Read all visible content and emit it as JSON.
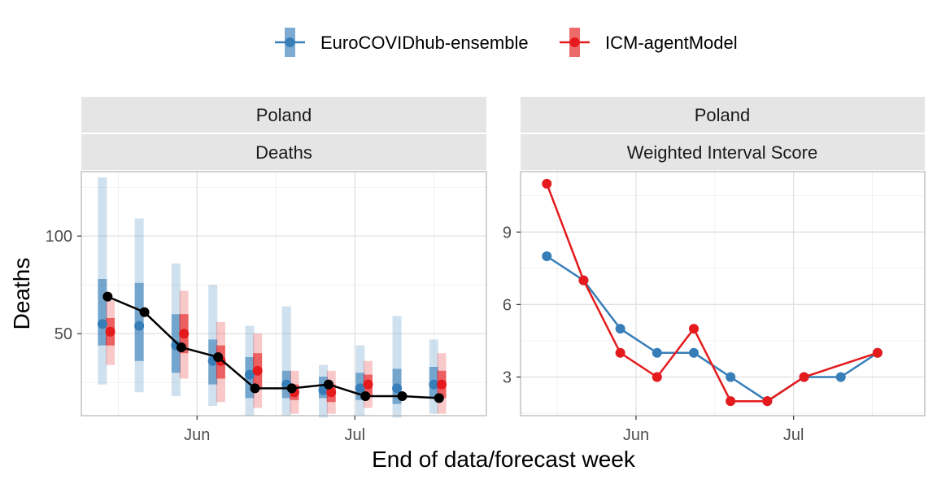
{
  "legend": [
    {
      "name": "EuroCOVIDhub-ensemble",
      "color": "#377EB8"
    },
    {
      "name": "ICM-agentModel",
      "color": "#E41A1C"
    }
  ],
  "x_axis_title": "End of data/forecast week",
  "chart_data": [
    {
      "type": "line",
      "strips": [
        "Poland",
        "Deaths"
      ],
      "ylabel": "Deaths",
      "xlim": [
        "2021-05-10",
        "2021-07-26"
      ],
      "ylim": [
        8,
        133
      ],
      "x_ticks": [
        {
          "date": "2021-06-01",
          "label": "Jun"
        },
        {
          "date": "2021-07-01",
          "label": "Jul"
        }
      ],
      "y_ticks": [
        {
          "value": 50,
          "label": "50"
        },
        {
          "value": 100,
          "label": "100"
        }
      ],
      "grid": true,
      "observed": {
        "color": "#000000",
        "x": [
          "2021-05-15",
          "2021-05-22",
          "2021-05-29",
          "2021-06-05",
          "2021-06-12",
          "2021-06-19",
          "2021-06-26",
          "2021-07-03",
          "2021-07-10",
          "2021-07-17"
        ],
        "y": [
          69,
          61,
          43,
          38,
          22,
          22,
          24,
          18,
          18,
          17
        ]
      },
      "series": [
        {
          "name": "EuroCOVIDhub-ensemble",
          "color": "#377EB8",
          "x": [
            "2021-05-14",
            "2021-05-21",
            "2021-05-28",
            "2021-06-04",
            "2021-06-11",
            "2021-06-18",
            "2021-06-25",
            "2021-07-02",
            "2021-07-09",
            "2021-07-16"
          ],
          "median": [
            55,
            54,
            44,
            36,
            29,
            24,
            21,
            22,
            22,
            24
          ],
          "inner": [
            [
              44,
              78
            ],
            [
              36,
              76
            ],
            [
              30,
              60
            ],
            [
              24,
              47
            ],
            [
              17,
              38
            ],
            [
              17,
              31
            ],
            [
              17,
              28
            ],
            [
              16,
              30
            ],
            [
              14,
              32
            ],
            [
              17,
              33
            ]
          ],
          "outer": [
            [
              24,
              130
            ],
            [
              20,
              109
            ],
            [
              18,
              86
            ],
            [
              13,
              75
            ],
            [
              8,
              54
            ],
            [
              8,
              64
            ],
            [
              7,
              34
            ],
            [
              8,
              44
            ],
            [
              7,
              59
            ],
            [
              9,
              47
            ]
          ]
        },
        {
          "name": "ICM-agentModel",
          "color": "#E41A1C",
          "x": [
            "2021-05-15.5",
            "2021-05-22.5",
            "2021-05-29.5",
            "2021-06-05.5",
            "2021-06-12.5",
            "2021-06-19.5",
            "2021-06-26.5",
            "2021-07-03.5",
            "2021-07-10.5",
            "2021-07-17.5"
          ],
          "median": [
            51,
            null,
            50,
            36,
            31,
            20,
            20,
            24,
            null,
            24
          ],
          "inner": [
            [
              44,
              58
            ],
            null,
            [
              40,
              60
            ],
            [
              27,
              44
            ],
            [
              22,
              40
            ],
            [
              16,
              24
            ],
            [
              15,
              24
            ],
            [
              18,
              29
            ],
            null,
            [
              17,
              31
            ]
          ],
          "outer": [
            [
              34,
              67
            ],
            null,
            [
              27,
              72
            ],
            [
              15,
              56
            ],
            [
              12,
              50
            ],
            [
              9,
              31
            ],
            [
              9,
              31
            ],
            [
              12,
              36
            ],
            null,
            [
              9,
              40
            ]
          ]
        }
      ]
    },
    {
      "type": "line",
      "strips": [
        "Poland",
        "Weighted Interval Score"
      ],
      "xlim": [
        "2021-05-10",
        "2021-07-26"
      ],
      "ylim": [
        1.4,
        11.5
      ],
      "x_ticks": [
        {
          "date": "2021-06-01",
          "label": "Jun"
        },
        {
          "date": "2021-07-01",
          "label": "Jul"
        }
      ],
      "y_ticks": [
        {
          "value": 3,
          "label": "3"
        },
        {
          "value": 6,
          "label": "6"
        },
        {
          "value": 9,
          "label": "9"
        }
      ],
      "grid": true,
      "series": [
        {
          "name": "EuroCOVIDhub-ensemble",
          "color": "#377EB8",
          "x": [
            "2021-05-15",
            "2021-05-22",
            "2021-05-29",
            "2021-06-05",
            "2021-06-12",
            "2021-06-19",
            "2021-06-26",
            "2021-07-03",
            "2021-07-10",
            "2021-07-17"
          ],
          "values": [
            8,
            7,
            5,
            4,
            4,
            3,
            2,
            3,
            3,
            4
          ]
        },
        {
          "name": "ICM-agentModel",
          "color": "#E41A1C",
          "x": [
            "2021-05-15",
            "2021-05-22",
            "2021-05-29",
            "2021-06-05",
            "2021-06-12",
            "2021-06-19",
            "2021-06-26",
            "2021-07-03",
            "2021-07-17"
          ],
          "values": [
            11,
            7,
            4,
            3,
            5,
            2,
            2,
            3,
            4
          ]
        }
      ]
    }
  ]
}
